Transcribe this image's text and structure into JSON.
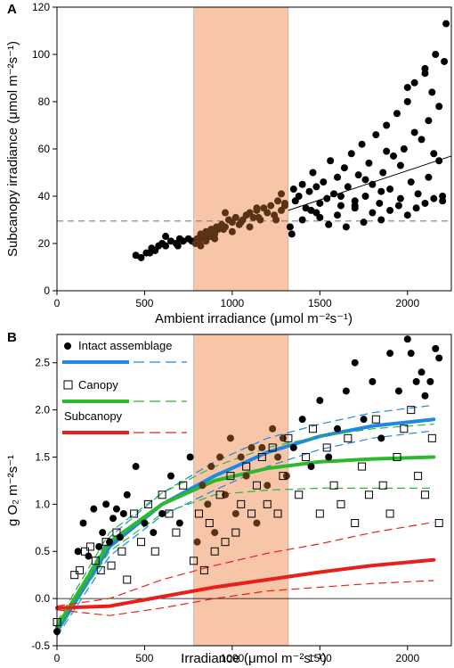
{
  "chart_data": [
    {
      "type": "scatter",
      "panel_label": "A",
      "xlabel": "Ambient irradiance (μmol m⁻²s⁻¹)",
      "ylabel": "Subcanopy irradiance (μmol m⁻²s⁻¹)",
      "xlim": [
        0,
        2250
      ],
      "ylim": [
        0,
        120
      ],
      "x_ticks": [
        0,
        500,
        1000,
        1500,
        2000
      ],
      "y_ticks": [
        0,
        20,
        40,
        60,
        80,
        100,
        120
      ],
      "shaded_band": {
        "x": [
          780,
          1320
        ],
        "color": "#f7c6a9"
      },
      "reference_line": {
        "y": 29.5,
        "style": "dashed",
        "color": "#808080"
      },
      "fit_line": {
        "x": [
          1320,
          2250
        ],
        "y": [
          34,
          57
        ]
      },
      "colors": {
        "points": "#000000",
        "points_in_band": "#5a3214"
      },
      "series": [
        {
          "x": [
            450,
            480,
            510,
            540,
            560,
            580,
            600,
            620,
            650,
            680,
            700,
            720,
            750,
            770,
            530,
            620,
            690,
            790,
            800,
            810,
            820,
            830,
            840,
            850,
            860,
            870,
            880,
            890,
            900,
            910,
            920,
            940,
            960,
            980,
            1000,
            1020,
            1040,
            1060,
            1080,
            1100,
            1120,
            1140,
            1160,
            1180,
            1200,
            1220,
            1240,
            1260,
            1280,
            1300,
            820,
            850,
            880,
            900,
            950,
            1000,
            1050,
            1100,
            1150,
            1200,
            1250,
            1300,
            960,
            1140,
            1280,
            1340,
            1360,
            1380,
            1400,
            1420,
            1440,
            1460,
            1480,
            1500,
            1520,
            1540,
            1560,
            1580,
            1600,
            1620,
            1640,
            1660,
            1680,
            1700,
            1720,
            1740,
            1760,
            1780,
            1800,
            1820,
            1840,
            1860,
            1880,
            1900,
            1920,
            1940,
            1960,
            1980,
            2000,
            2020,
            2040,
            2060,
            2080,
            2100,
            2120,
            2140,
            2160,
            2180,
            2200,
            2220,
            1350,
            1400,
            1450,
            1500,
            1550,
            1600,
            1650,
            1700,
            1750,
            1800,
            1850,
            1900,
            1950,
            2000,
            2050,
            2100,
            2150,
            2200,
            1480,
            1620,
            1760,
            1880,
            1960,
            2040,
            2120,
            2180,
            2210,
            1330,
            1700,
            1850,
            2000,
            2100,
            2150
          ],
          "y": [
            15,
            14,
            16,
            18,
            17,
            19,
            20,
            19,
            21,
            20,
            22,
            21,
            22,
            21,
            16,
            23,
            19,
            20,
            22,
            21,
            24,
            23,
            22,
            25,
            24,
            23,
            26,
            25,
            24,
            27,
            26,
            28,
            27,
            30,
            29,
            31,
            28,
            30,
            32,
            33,
            31,
            34,
            30,
            35,
            33,
            36,
            32,
            38,
            34,
            36,
            19,
            21,
            23,
            22,
            26,
            25,
            29,
            27,
            31,
            33,
            30,
            37,
            33,
            35,
            41,
            24,
            38,
            40,
            45,
            35,
            42,
            50,
            33,
            37,
            46,
            39,
            55,
            41,
            48,
            36,
            52,
            44,
            58,
            38,
            49,
            62,
            40,
            54,
            45,
            66,
            37,
            50,
            70,
            43,
            57,
            75,
            39,
            60,
            80,
            46,
            88,
            41,
            64,
            92,
            48,
            84,
            100,
            55,
            38,
            113,
            43,
            30,
            34,
            31,
            28,
            32,
            27,
            35,
            29,
            33,
            30,
            34,
            36,
            32,
            35,
            37,
            39,
            40,
            44,
            40,
            47,
            59,
            53,
            67,
            72,
            78,
            97,
            27,
            36,
            42,
            86,
            94,
            58
          ]
        }
      ]
    },
    {
      "type": "scatter",
      "panel_label": "B",
      "xlabel": "Irradiance (μmol m⁻²s⁻¹)",
      "ylabel": "g O₂ m⁻²s⁻¹",
      "xlim": [
        0,
        2250
      ],
      "ylim": [
        -0.5,
        2.8
      ],
      "x_ticks": [
        0,
        500,
        1000,
        1500,
        2000
      ],
      "y_ticks": [
        -0.5,
        0.0,
        0.5,
        1.0,
        1.5,
        2.0,
        2.5
      ],
      "shaded_band": {
        "x": [
          780,
          1320
        ],
        "color": "#f7c6a9"
      },
      "reference_line": {
        "y": 0.0,
        "style": "solid",
        "color": "#000000"
      },
      "legend": {
        "placement": "top-left",
        "entries": [
          {
            "label": "Intact assemblage",
            "marker": "filled-circle",
            "line_color": "#1e88e5"
          },
          {
            "label": "Canopy",
            "marker": "open-square",
            "line_color": "#2db82d"
          },
          {
            "label": "Subcanopy",
            "marker": "",
            "line_color": "#e8201a"
          }
        ]
      },
      "colors": {
        "intact": "#1e88e5",
        "canopy": "#2db82d",
        "subcanopy": "#e8201a",
        "points_in_band": "#5a3214"
      },
      "series": [
        {
          "name": "Intact assemblage",
          "marker": "filled-circle",
          "x": [
            0,
            120,
            150,
            180,
            210,
            240,
            260,
            280,
            300,
            320,
            340,
            360,
            380,
            400,
            450,
            500,
            550,
            600,
            650,
            700,
            760,
            800,
            830,
            860,
            880,
            900,
            930,
            960,
            990,
            1020,
            1050,
            1080,
            1110,
            1140,
            1170,
            1200,
            1230,
            1260,
            1290,
            1310,
            1350,
            1400,
            1450,
            1500,
            1550,
            1600,
            1650,
            1700,
            1750,
            1800,
            1850,
            1900,
            1950,
            2000,
            2020,
            2050,
            2080,
            2100,
            2130,
            2160,
            2180
          ],
          "y": [
            -0.35,
            0.5,
            0.8,
            0.45,
            0.95,
            0.55,
            0.7,
            1.0,
            0.6,
            0.85,
            0.95,
            0.65,
            0.9,
            1.1,
            1.4,
            0.8,
            0.7,
            0.9,
            1.3,
            0.8,
            1.5,
            0.6,
            1.2,
            1.0,
            1.4,
            0.7,
            1.5,
            1.1,
            1.7,
            0.9,
            1.5,
            1.3,
            1.6,
            0.8,
            1.6,
            1.2,
            1.8,
            1.5,
            1.7,
            1.3,
            1.6,
            1.9,
            1.4,
            2.1,
            1.5,
            1.8,
            2.2,
            2.5,
            1.9,
            2.3,
            1.7,
            2.6,
            2.2,
            2.75,
            2.6,
            2.3,
            2.4,
            2.15,
            2.3,
            2.65,
            2.55
          ]
        },
        {
          "name": "Canopy",
          "marker": "open-square",
          "x": [
            0,
            100,
            130,
            160,
            190,
            220,
            250,
            280,
            310,
            340,
            370,
            400,
            440,
            480,
            520,
            560,
            600,
            640,
            680,
            720,
            780,
            810,
            840,
            870,
            900,
            930,
            960,
            990,
            1020,
            1050,
            1080,
            1110,
            1140,
            1170,
            1200,
            1230,
            1260,
            1290,
            1320,
            1380,
            1420,
            1460,
            1500,
            1540,
            1580,
            1620,
            1660,
            1700,
            1740,
            1780,
            1820,
            1860,
            1900,
            1940,
            1980,
            2020,
            2060,
            2100,
            2140,
            2180
          ],
          "y": [
            -0.25,
            0.25,
            0.3,
            0.5,
            0.55,
            0.4,
            0.3,
            0.6,
            0.35,
            0.7,
            0.5,
            0.2,
            0.9,
            0.6,
            1.0,
            0.5,
            1.1,
            0.9,
            0.7,
            1.2,
            0.4,
            0.9,
            0.3,
            0.8,
            0.5,
            1.1,
            0.6,
            1.3,
            0.7,
            1.0,
            1.4,
            0.9,
            1.2,
            1.5,
            1.0,
            1.6,
            0.9,
            1.3,
            1.7,
            1.1,
            1.5,
            1.8,
            0.9,
            1.6,
            1.2,
            1.0,
            1.7,
            0.8,
            1.4,
            1.1,
            1.9,
            1.2,
            0.9,
            1.5,
            1.8,
            2.0,
            1.3,
            1.1,
            1.7,
            0.8
          ]
        },
        {
          "name": "Subcanopy",
          "marker": "",
          "x": [],
          "y": []
        }
      ],
      "fits": [
        {
          "name": "Intact assemblage",
          "x": [
            0,
            300,
            600,
            900,
            1200,
            1500,
            1800,
            2150
          ],
          "y": [
            -0.35,
            0.55,
            1.0,
            1.3,
            1.55,
            1.72,
            1.83,
            1.9
          ],
          "ci_upper": [
            -0.3,
            0.65,
            1.12,
            1.45,
            1.7,
            1.85,
            1.97,
            2.05
          ],
          "ci_lower": [
            -0.4,
            0.45,
            0.88,
            1.15,
            1.4,
            1.58,
            1.7,
            1.78
          ]
        },
        {
          "name": "Canopy",
          "x": [
            0,
            300,
            600,
            900,
            1200,
            1500,
            1800,
            2150
          ],
          "y": [
            -0.3,
            0.6,
            1.0,
            1.25,
            1.38,
            1.45,
            1.48,
            1.5
          ],
          "ci_upper": [
            -0.25,
            0.7,
            1.12,
            1.4,
            1.6,
            1.72,
            1.8,
            1.85
          ],
          "ci_lower": [
            -0.35,
            0.5,
            0.9,
            1.1,
            1.15,
            1.17,
            1.17,
            1.17
          ]
        },
        {
          "name": "Subcanopy",
          "x": [
            0,
            300,
            600,
            900,
            1200,
            1500,
            1800,
            2150
          ],
          "y": [
            -0.1,
            -0.08,
            0.02,
            0.12,
            0.2,
            0.28,
            0.35,
            0.41
          ],
          "ci_upper": [
            -0.08,
            0.0,
            0.2,
            0.35,
            0.48,
            0.58,
            0.7,
            0.81
          ],
          "ci_lower": [
            -0.12,
            -0.18,
            -0.1,
            0.0,
            0.08,
            0.12,
            0.16,
            0.19
          ]
        }
      ]
    }
  ]
}
